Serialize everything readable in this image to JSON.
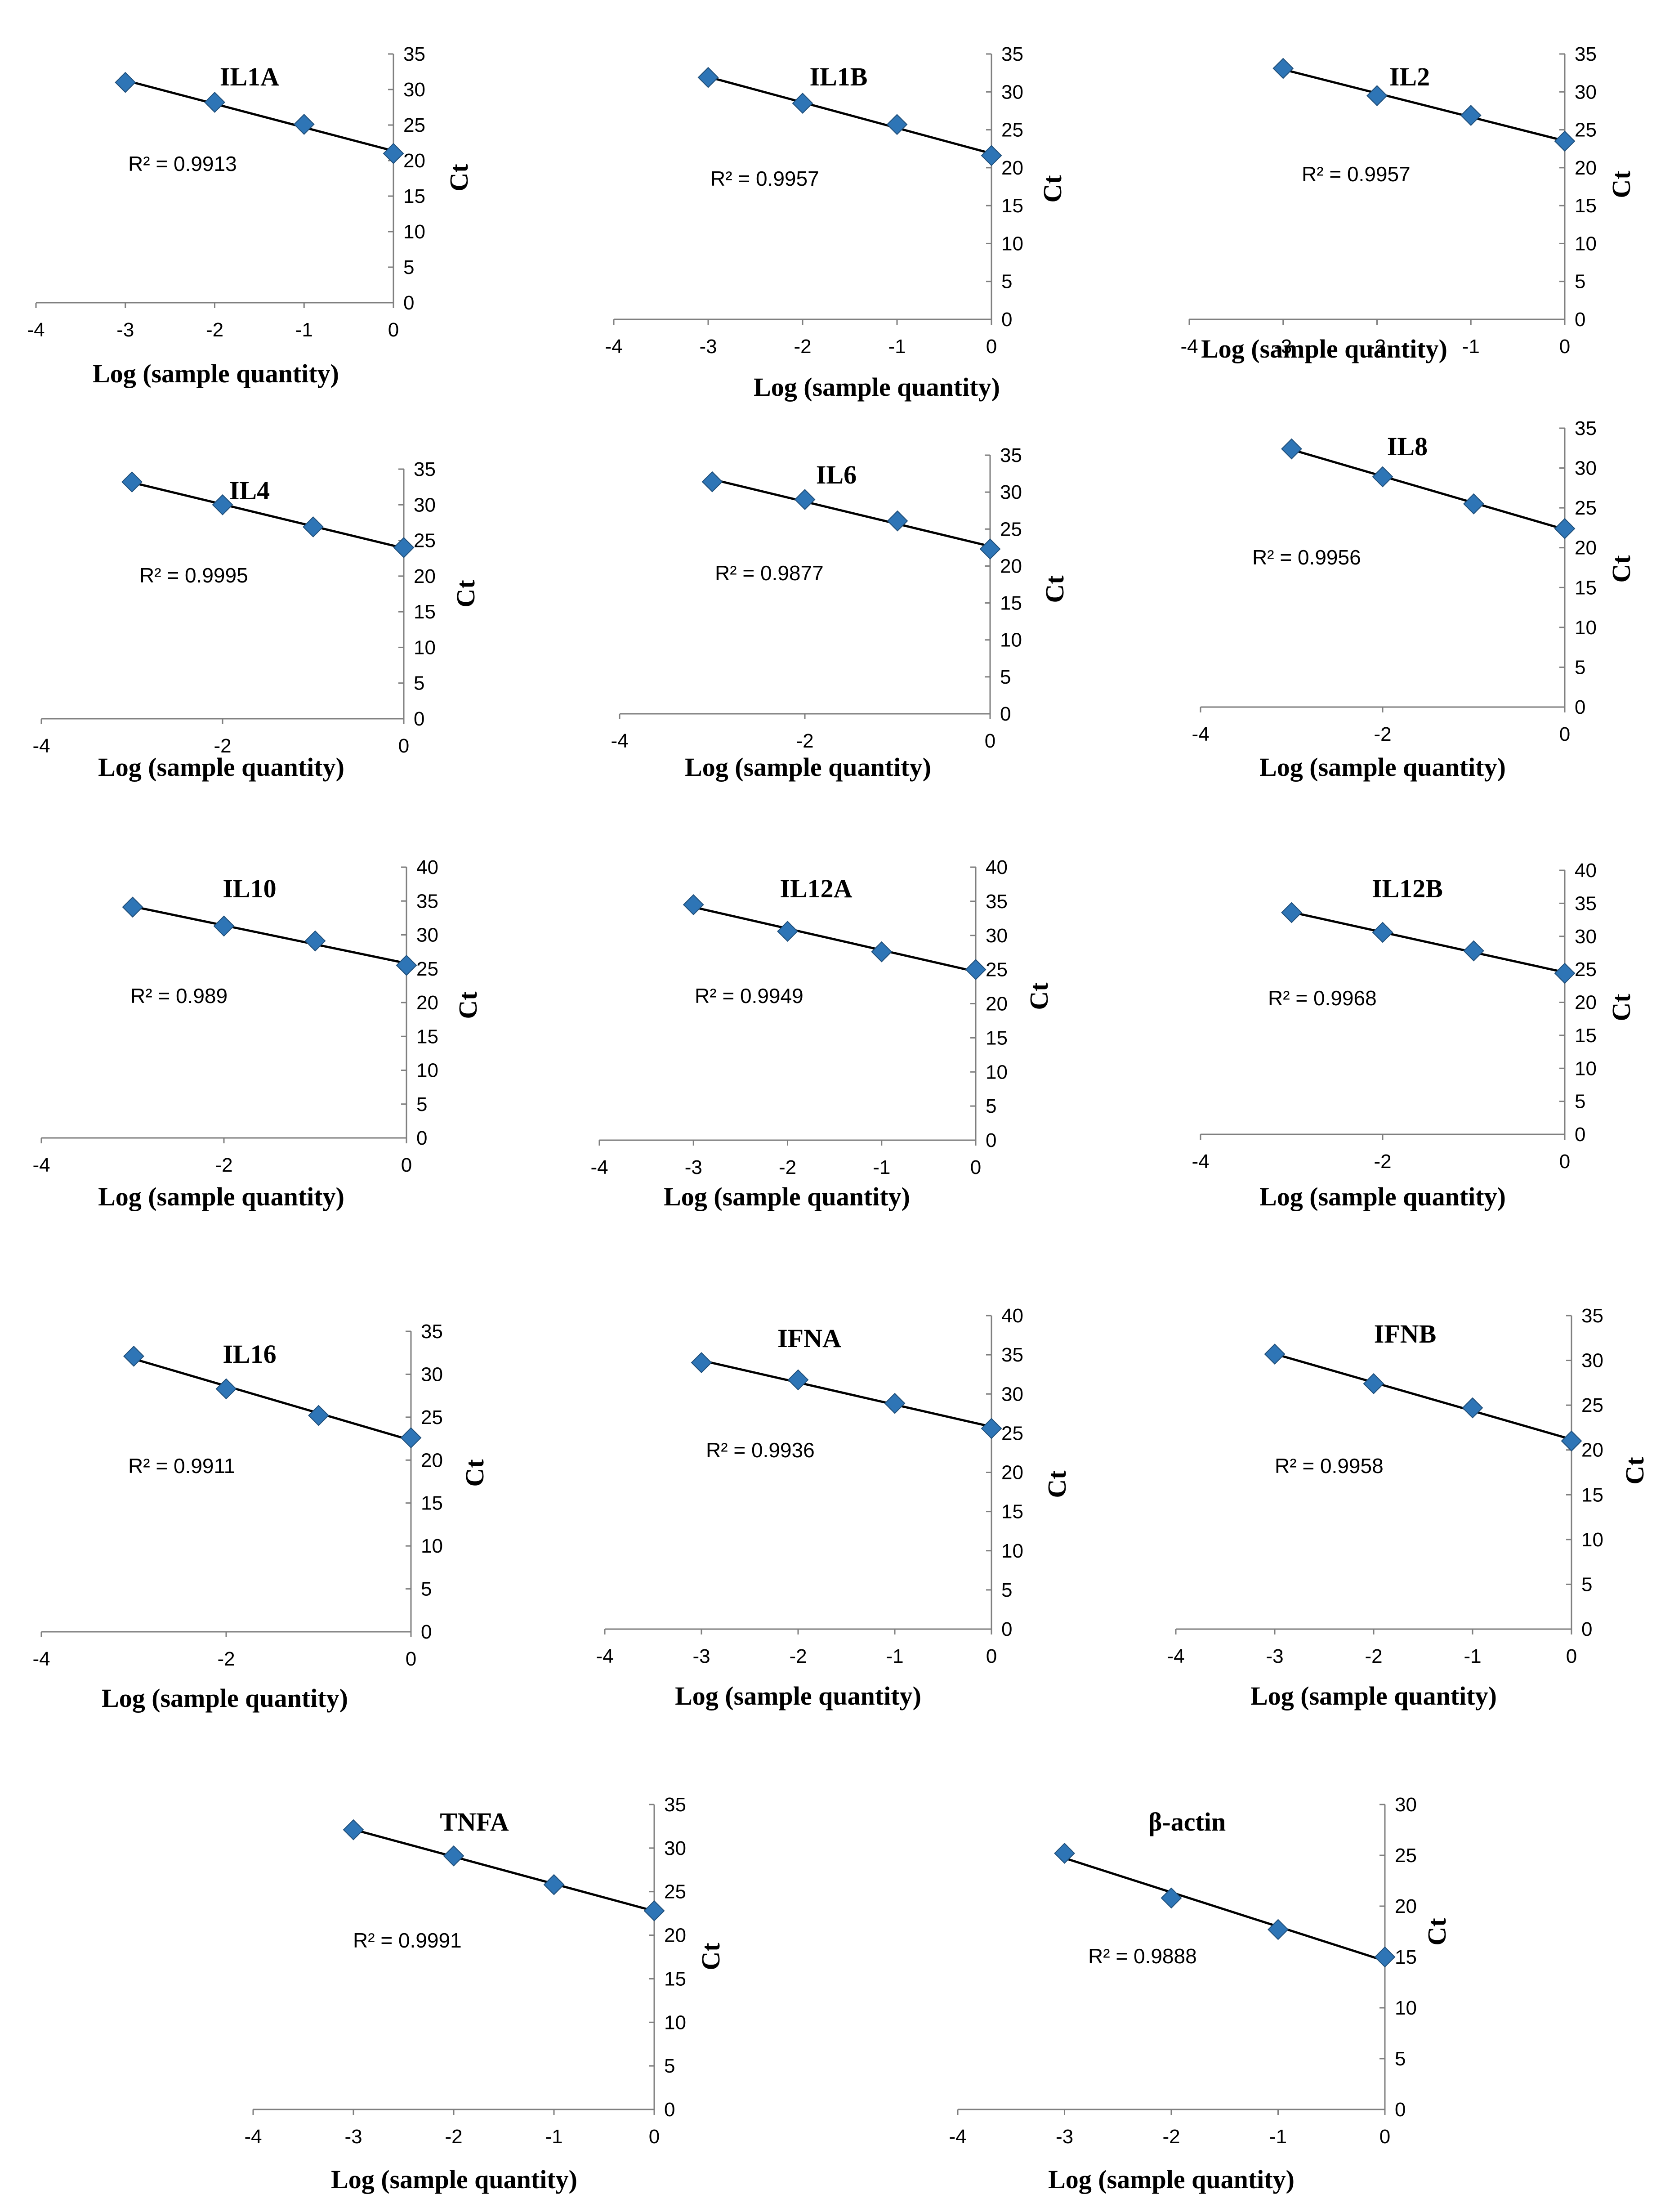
{
  "common": {
    "x_label": "Log (sample quantity)",
    "y_label": "Ct",
    "marker_color": "#2e75b6"
  },
  "chart_data": [
    {
      "type": "scatter",
      "title": "IL1A",
      "r2_label": "R² = 0.9913",
      "x": [
        -3,
        -2,
        -1,
        0
      ],
      "y": [
        31,
        28.2,
        25.1,
        21
      ],
      "xlim": [
        -4,
        0
      ],
      "ylim": [
        0,
        35
      ],
      "yticks": [
        0,
        5,
        10,
        15,
        20,
        25,
        30,
        35
      ],
      "xticks": [
        -4,
        -3,
        -2,
        -1,
        0
      ]
    },
    {
      "type": "scatter",
      "title": "IL1B",
      "r2_label": "R² = 0.9957",
      "x": [
        -3,
        -2,
        -1,
        0
      ],
      "y": [
        31.9,
        28.5,
        25.7,
        21.6
      ],
      "xlim": [
        -4,
        0
      ],
      "ylim": [
        0,
        35
      ],
      "yticks": [
        0,
        5,
        10,
        15,
        20,
        25,
        30,
        35
      ],
      "xticks": [
        -4,
        -3,
        -2,
        -1,
        0
      ]
    },
    {
      "type": "scatter",
      "title": "IL2",
      "r2_label": "R² = 0.9957",
      "x": [
        -3,
        -2,
        -1,
        0
      ],
      "y": [
        33.1,
        29.5,
        26.9,
        23.5
      ],
      "xlim": [
        -4,
        0
      ],
      "ylim": [
        0,
        35
      ],
      "yticks": [
        0,
        5,
        10,
        15,
        20,
        25,
        30,
        35
      ],
      "xticks": [
        -4,
        -3,
        -2,
        -1,
        0
      ]
    },
    {
      "type": "scatter",
      "title": "IL4",
      "r2_label": "R² = 0.9995",
      "x": [
        -3,
        -2,
        -1,
        0
      ],
      "y": [
        33.2,
        30,
        26.9,
        24
      ],
      "xlim": [
        -4,
        0
      ],
      "ylim": [
        0,
        35
      ],
      "yticks": [
        0,
        5,
        10,
        15,
        20,
        25,
        30,
        35
      ],
      "xticks": [
        -4,
        -2,
        0
      ]
    },
    {
      "type": "scatter",
      "title": "IL6",
      "r2_label": "R² = 0.9877",
      "x": [
        -3,
        -2,
        -1,
        0
      ],
      "y": [
        31.4,
        29,
        26.1,
        22.3
      ],
      "xlim": [
        -4,
        0
      ],
      "ylim": [
        0,
        35
      ],
      "yticks": [
        0,
        5,
        10,
        15,
        20,
        25,
        30,
        35
      ],
      "xticks": [
        -4,
        -2,
        0
      ]
    },
    {
      "type": "scatter",
      "title": "IL8",
      "r2_label": "R² = 0.9956",
      "x": [
        -3,
        -2,
        -1,
        0
      ],
      "y": [
        32.4,
        28.9,
        25.5,
        22.4
      ],
      "xlim": [
        -4,
        0
      ],
      "ylim": [
        0,
        35
      ],
      "yticks": [
        0,
        5,
        10,
        15,
        20,
        25,
        30,
        35
      ],
      "xticks": [
        -4,
        -2,
        0
      ]
    },
    {
      "type": "scatter",
      "title": "IL10",
      "r2_label": "R² = 0.989",
      "x": [
        -3,
        -2,
        -1,
        0
      ],
      "y": [
        34.1,
        31.3,
        29.1,
        25.5
      ],
      "xlim": [
        -4,
        0
      ],
      "ylim": [
        0,
        40
      ],
      "yticks": [
        0,
        5,
        10,
        15,
        20,
        25,
        30,
        35,
        40
      ],
      "xticks": [
        -4,
        -2,
        0
      ]
    },
    {
      "type": "scatter",
      "title": "IL12A",
      "r2_label": "R² = 0.9949",
      "x": [
        -3,
        -2,
        -1,
        0
      ],
      "y": [
        34.5,
        30.6,
        27.6,
        25
      ],
      "xlim": [
        -4,
        0
      ],
      "ylim": [
        0,
        40
      ],
      "yticks": [
        0,
        5,
        10,
        15,
        20,
        25,
        30,
        35,
        40
      ],
      "xticks": [
        -4,
        -3,
        -2,
        -1,
        0
      ]
    },
    {
      "type": "scatter",
      "title": "IL12B",
      "r2_label": "R² = 0.9968",
      "x": [
        -3,
        -2,
        -1,
        0
      ],
      "y": [
        33.6,
        30.6,
        27.8,
        24.4
      ],
      "xlim": [
        -4,
        0
      ],
      "ylim": [
        0,
        40
      ],
      "yticks": [
        0,
        5,
        10,
        15,
        20,
        25,
        30,
        35,
        40
      ],
      "xticks": [
        -4,
        -2,
        0
      ]
    },
    {
      "type": "scatter",
      "title": "IL16",
      "r2_label": "R² = 0.9911",
      "x": [
        -3,
        -2,
        -1,
        0
      ],
      "y": [
        32.1,
        28.3,
        25.2,
        22.6
      ],
      "xlim": [
        -4,
        0
      ],
      "ylim": [
        0,
        35
      ],
      "yticks": [
        0,
        5,
        10,
        15,
        20,
        25,
        30,
        35
      ],
      "xticks": [
        -4,
        -2,
        0
      ]
    },
    {
      "type": "scatter",
      "title": "IFNA",
      "r2_label": "R² = 0.9936",
      "x": [
        -3,
        -2,
        -1,
        0
      ],
      "y": [
        34,
        31.8,
        28.8,
        25.6
      ],
      "xlim": [
        -4,
        0
      ],
      "ylim": [
        0,
        40
      ],
      "yticks": [
        0,
        5,
        10,
        15,
        20,
        25,
        30,
        35,
        40
      ],
      "xticks": [
        -4,
        -3,
        -2,
        -1,
        0
      ]
    },
    {
      "type": "scatter",
      "title": "IFNB",
      "r2_label": "R² = 0.9958",
      "x": [
        -3,
        -2,
        -1,
        0
      ],
      "y": [
        30.7,
        27.4,
        24.7,
        21
      ],
      "xlim": [
        -4,
        0
      ],
      "ylim": [
        0,
        35
      ],
      "yticks": [
        0,
        5,
        10,
        15,
        20,
        25,
        30,
        35
      ],
      "xticks": [
        -4,
        -3,
        -2,
        -1,
        0
      ]
    },
    {
      "type": "scatter",
      "title": "TNFA",
      "r2_label": "R² = 0.9991",
      "x": [
        -3,
        -2,
        -1,
        0
      ],
      "y": [
        32.1,
        29.1,
        25.8,
        22.8
      ],
      "xlim": [
        -4,
        0
      ],
      "ylim": [
        0,
        35
      ],
      "yticks": [
        0,
        5,
        10,
        15,
        20,
        25,
        30,
        35
      ],
      "xticks": [
        -4,
        -3,
        -2,
        -1,
        0
      ]
    },
    {
      "type": "scatter",
      "title": "β-actin",
      "r2_label": "R² = 0.9888",
      "x": [
        -3,
        -2,
        -1,
        0
      ],
      "y": [
        25.2,
        20.8,
        17.7,
        15
      ],
      "xlim": [
        -4,
        0
      ],
      "ylim": [
        0,
        30
      ],
      "yticks": [
        0,
        5,
        10,
        15,
        20,
        25,
        30
      ],
      "xticks": [
        -4,
        -3,
        -2,
        -1,
        0
      ]
    }
  ]
}
